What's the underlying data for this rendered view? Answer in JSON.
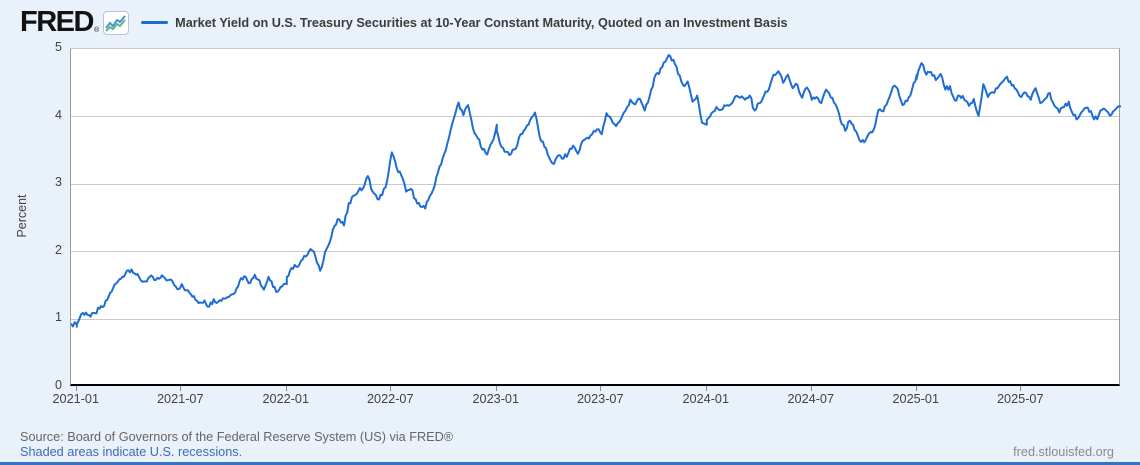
{
  "brand": {
    "logo_text": "FRED",
    "registered_mark": "®",
    "logo_icon": "mini-sparkline-chart-icon"
  },
  "legend": {
    "series_label": "Market Yield on U.S. Treasury Securities at 10-Year Constant Maturity, Quoted on an Investment Basis",
    "series_color": "#1e6dd2"
  },
  "footer": {
    "source_text": "Source: Board of Governors of the Federal Reserve System (US) via FRED®",
    "recession_note": "Shaded areas indicate U.S. recessions.",
    "site_url": "fred.stlouisfed.org"
  },
  "colors": {
    "page_bg": "#e9f1fa",
    "plot_bg": "#ffffff",
    "gridline": "#c9c9c9",
    "axis": "#000000",
    "line": "#1e6dd2",
    "tick_text": "#424242",
    "source_text": "#666666",
    "link": "#3d6eb4",
    "bottom_strip": "#3871c1"
  },
  "chart_data": {
    "type": "line",
    "title": "Market Yield on U.S. Treasury Securities at 10-Year Constant Maturity, Quoted on an Investment Basis",
    "xlabel": "",
    "ylabel": "Percent",
    "ylim": [
      0,
      5
    ],
    "yticks": [
      0,
      1,
      2,
      3,
      4,
      5
    ],
    "grid": true,
    "legend_position": "top-left",
    "x_domain_months": [
      0,
      60
    ],
    "x_domain_note": "months since late Dec 2020; data span approx 2020-12-22 to 2025-12-22, daily frequency",
    "xticks": [
      {
        "t": 0.33,
        "label": "2021-01"
      },
      {
        "t": 6.3,
        "label": "2021-07"
      },
      {
        "t": 12.33,
        "label": "2022-01"
      },
      {
        "t": 18.3,
        "label": "2022-07"
      },
      {
        "t": 24.33,
        "label": "2023-01"
      },
      {
        "t": 30.3,
        "label": "2023-07"
      },
      {
        "t": 36.33,
        "label": "2024-01"
      },
      {
        "t": 42.33,
        "label": "2024-07"
      },
      {
        "t": 48.33,
        "label": "2025-01"
      },
      {
        "t": 54.3,
        "label": "2025-07"
      }
    ],
    "series": [
      {
        "name": "Market Yield on U.S. Treasury Securities at 10-Year Constant Maturity, Quoted on an Investment Basis",
        "color": "#1e6dd2",
        "unit": "Percent",
        "segments": [
          {
            "t0": 0,
            "t1": 0.33,
            "values": [
              0.94,
              0.92
            ]
          },
          {
            "t0": 0.33,
            "t1": 12.33,
            "values": [
              0.93,
              1.08,
              1.1,
              1.04,
              1.09,
              1.16,
              1.2,
              1.34,
              1.47,
              1.56,
              1.63,
              1.72,
              1.74,
              1.66,
              1.58,
              1.56,
              1.63,
              1.58,
              1.6,
              1.63,
              1.58,
              1.56,
              1.45,
              1.52,
              1.43,
              1.37,
              1.29,
              1.25,
              1.28,
              1.19,
              1.3,
              1.26,
              1.31,
              1.33,
              1.37,
              1.46,
              1.61,
              1.63,
              1.54,
              1.66,
              1.58,
              1.44,
              1.63,
              1.48,
              1.41,
              1.49,
              1.52
            ]
          },
          {
            "t0": 12.33,
            "t1": 24.33,
            "values": [
              1.63,
              1.76,
              1.78,
              1.87,
              1.93,
              2.04,
              1.93,
              1.72,
              1.99,
              2.14,
              2.38,
              2.48,
              2.39,
              2.72,
              2.83,
              2.9,
              2.94,
              3.12,
              2.89,
              2.78,
              2.84,
              3.04,
              3.47,
              3.25,
              3.13,
              2.89,
              2.93,
              2.78,
              2.67,
              2.64,
              2.83,
              2.98,
              3.26,
              3.45,
              3.69,
              3.97,
              4.21,
              4.02,
              4.17,
              3.83,
              3.68,
              3.51,
              3.44,
              3.62,
              3.88
            ]
          },
          {
            "t0": 24.33,
            "t1": 36.33,
            "values": [
              3.79,
              3.55,
              3.48,
              3.45,
              3.53,
              3.74,
              3.82,
              3.95,
              4.06,
              3.7,
              3.55,
              3.39,
              3.3,
              3.43,
              3.38,
              3.46,
              3.57,
              3.45,
              3.64,
              3.69,
              3.74,
              3.81,
              3.74,
              4.05,
              3.96,
              3.86,
              3.96,
              4.09,
              4.25,
              4.18,
              4.26,
              4.09,
              4.29,
              4.57,
              4.63,
              4.8,
              4.91,
              4.84,
              4.63,
              4.47,
              4.52,
              4.22,
              4.31,
              3.91,
              3.88
            ]
          },
          {
            "t0": 36.33,
            "t1": 48.33,
            "values": [
              3.95,
              4.05,
              4.14,
              4.1,
              4.16,
              4.18,
              4.3,
              4.28,
              4.25,
              4.31,
              4.09,
              4.2,
              4.31,
              4.4,
              4.62,
              4.67,
              4.5,
              4.62,
              4.42,
              4.47,
              4.28,
              4.43,
              4.25,
              4.29,
              4.2,
              4.4,
              4.28,
              4.18,
              3.95,
              3.79,
              3.94,
              3.8,
              3.65,
              3.62,
              3.75,
              3.81,
              4.1,
              4.08,
              4.24,
              4.44,
              4.41,
              4.17,
              4.23,
              4.4,
              4.62
            ]
          },
          {
            "t0": 48.33,
            "t1": 60,
            "values": [
              4.57,
              4.79,
              4.62,
              4.66,
              4.54,
              4.63,
              4.4,
              4.45,
              4.24,
              4.31,
              4.25,
              4.16,
              4.26,
              4.01,
              4.48,
              4.29,
              4.36,
              4.42,
              4.51,
              4.59,
              4.46,
              4.4,
              4.29,
              4.35,
              4.25,
              4.42,
              4.2,
              4.26,
              4.35,
              4.16,
              4.06,
              4.14,
              4.22,
              4.02,
              3.98,
              4.09,
              4.13,
              4.01,
              3.96,
              4.1,
              4.08,
              4.03,
              4.12,
              4.15
            ]
          }
        ]
      }
    ]
  }
}
